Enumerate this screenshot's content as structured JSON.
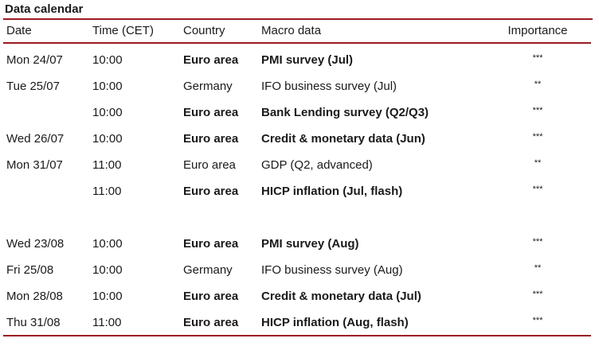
{
  "title": "Data calendar",
  "columns": [
    "Date",
    "Time (CET)",
    "Country",
    "Macro data",
    "Importance"
  ],
  "rows": [
    {
      "date": "Mon 24/07",
      "time": "10:00",
      "country": "Euro area",
      "macro": "PMI survey (Jul)",
      "importance": "***",
      "bold": true
    },
    {
      "date": "Tue 25/07",
      "time": "10:00",
      "country": "Germany",
      "macro": "IFO business survey (Jul)",
      "importance": "**",
      "bold": false
    },
    {
      "date": "",
      "time": "10:00",
      "country": "Euro area",
      "macro": "Bank Lending survey (Q2/Q3)",
      "importance": "***",
      "bold": true
    },
    {
      "date": "Wed 26/07",
      "time": "10:00",
      "country": "Euro area",
      "macro": "Credit & monetary data (Jun)",
      "importance": "***",
      "bold": true
    },
    {
      "date": "Mon 31/07",
      "time": "11:00",
      "country": "Euro area",
      "macro": "GDP (Q2, advanced)",
      "importance": "**",
      "bold": false
    },
    {
      "date": "",
      "time": "11:00",
      "country": "Euro area",
      "macro": "HICP inflation (Jul, flash)",
      "importance": "***",
      "bold": true
    },
    {
      "date": "",
      "time": "",
      "country": "",
      "macro": "",
      "importance": "",
      "bold": false
    },
    {
      "date": "Wed 23/08",
      "time": "10:00",
      "country": "Euro area",
      "macro": "PMI survey (Aug)",
      "importance": "***",
      "bold": true
    },
    {
      "date": "Fri 25/08",
      "time": "10:00",
      "country": "Germany",
      "macro": "IFO business survey (Aug)",
      "importance": "**",
      "bold": false
    },
    {
      "date": "Mon 28/08",
      "time": "10:00",
      "country": "Euro area",
      "macro": "Credit & monetary data (Jul)",
      "importance": "***",
      "bold": true
    },
    {
      "date": "Thu 31/08",
      "time": "11:00",
      "country": "Euro area",
      "macro": "HICP inflation (Aug, flash)",
      "importance": "***",
      "bold": true
    }
  ],
  "colors": {
    "rule": "#9b1b22",
    "text": "#1a1a1a"
  }
}
